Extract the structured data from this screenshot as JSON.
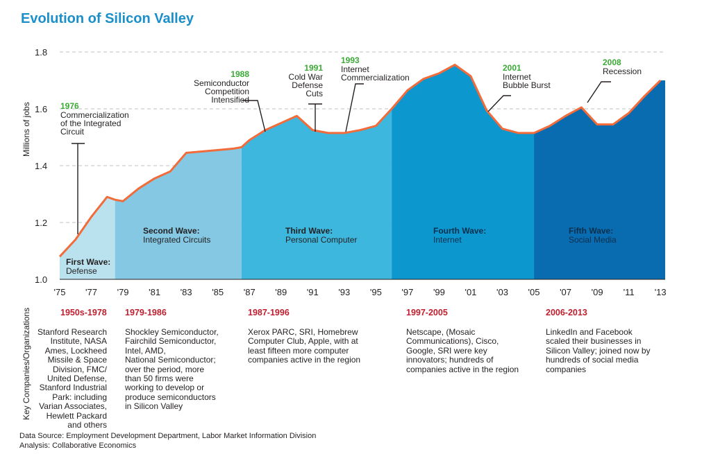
{
  "title": "Evolution of Silicon Valley",
  "chart_data": {
    "type": "area",
    "title": "Evolution of Silicon Valley",
    "ylabel": "Millions of jobs",
    "xlabel": "",
    "ylim": [
      1.0,
      1.8
    ],
    "y_ticks": [
      "1.0",
      "1.2",
      "1.4",
      "1.6",
      "1.8"
    ],
    "y_tick_values": [
      1.0,
      1.2,
      1.4,
      1.6,
      1.8
    ],
    "x_tick_labels": [
      "'75",
      "'77",
      "'79",
      "'81",
      "'83",
      "'85",
      "'87",
      "'89",
      "'91",
      "'93",
      "'95",
      "'97",
      "'99",
      "'01",
      "'03",
      "'05",
      "'07",
      "'09",
      "'11",
      "'13"
    ],
    "x_tick_years": [
      1975,
      1977,
      1979,
      1981,
      1983,
      1985,
      1987,
      1989,
      1991,
      1993,
      1995,
      1997,
      1999,
      2001,
      2003,
      2005,
      2007,
      2009,
      2011,
      2013
    ],
    "series": [
      {
        "name": "Silicon Valley jobs",
        "x": [
          1975,
          1976,
          1977,
          1978,
          1978.5,
          1979,
          1980,
          1981,
          1982,
          1983,
          1984,
          1985,
          1986,
          1986.5,
          1987,
          1988,
          1989,
          1990,
          1991,
          1992,
          1993,
          1994,
          1995,
          1996,
          1997,
          1998,
          1999,
          2000,
          2001,
          2002,
          2003,
          2004,
          2005,
          2006,
          2007,
          2008,
          2009,
          2010,
          2011,
          2012,
          2013
        ],
        "values": [
          1.08,
          1.14,
          1.22,
          1.29,
          1.28,
          1.275,
          1.32,
          1.355,
          1.38,
          1.445,
          1.45,
          1.455,
          1.46,
          1.465,
          1.49,
          1.525,
          1.55,
          1.575,
          1.525,
          1.515,
          1.515,
          1.525,
          1.54,
          1.6,
          1.665,
          1.705,
          1.725,
          1.755,
          1.715,
          1.595,
          1.53,
          1.515,
          1.515,
          1.54,
          1.575,
          1.605,
          1.545,
          1.545,
          1.585,
          1.645,
          1.7
        ]
      }
    ],
    "waves": [
      {
        "name": "First Wave:",
        "subtitle": "Defense",
        "start": 1975,
        "end": 1978.5,
        "color": "#b9e1ee"
      },
      {
        "name": "Second Wave:",
        "subtitle": "Integrated Circuits",
        "start": 1978.5,
        "end": 1986.5,
        "color": "#84c8e3"
      },
      {
        "name": "Third Wave:",
        "subtitle": "Personal Computer",
        "start": 1986.5,
        "end": 1996,
        "color": "#3eb7de"
      },
      {
        "name": "Fourth Wave:",
        "subtitle": "Internet",
        "start": 1996,
        "end": 2005,
        "color": "#0d97cf"
      },
      {
        "name": "Fifth Wave:",
        "subtitle": "Social Media",
        "start": 2005,
        "end": 2013.3,
        "color": "#0a6cb0"
      }
    ],
    "annotations": [
      {
        "year_label": "1976",
        "text": "Commercialization\nof the Integrated\nCircuit"
      },
      {
        "year_label": "1988",
        "text": "Semiconductor\nCompetition\nIntensified"
      },
      {
        "year_label": "1991",
        "text": "Cold War\nDefense\nCuts"
      },
      {
        "year_label": "1993",
        "text": "Internet\nCommercialization"
      },
      {
        "year_label": "2001",
        "text": "Internet\nBubble Burst"
      },
      {
        "year_label": "2008",
        "text": "Recession"
      }
    ],
    "colors": {
      "line": "#f26b3a",
      "annotation_year": "#3aaa35",
      "era": "#be1e2d",
      "title": "#1a8fc9"
    }
  },
  "companies": {
    "axis_label": "Key Companies/Organizations",
    "eras": [
      {
        "period": "1950s-1978",
        "text": "Stanford Research\nInstitute, NASA\nAmes, Lockheed\nMissile & Space\nDivision, FMC/\nUnited Defense,\nStanford Industrial\nPark: including\nVarian Associates,\nHewlett Packard\nand others"
      },
      {
        "period": "1979-1986",
        "text": "Shockley Semiconductor,\nFairchild Semiconductor,\nIntel, AMD,\nNational Semiconductor;\nover the period, more\nthan 50 firms were\nworking to develop or\nproduce semiconductors\nin Silicon Valley"
      },
      {
        "period": "1987-1996",
        "text": "Xerox PARC, SRI, Homebrew\nComputer Club, Apple, with at\nleast fifteen more computer\ncompanies active in the region"
      },
      {
        "period": "1997-2005",
        "text": "Netscape, (Mosaic\nCommunications), Cisco,\nGoogle, SRI were key\ninnovators; hundreds of\ncompanies active in the region"
      },
      {
        "period": "2006-2013",
        "text": "LinkedIn and Facebook\nscaled their businesses in\nSilicon Valley; joined now by\nhundreds of social media\ncompanies"
      }
    ]
  },
  "footer": {
    "source": "Data Source: Employment Development Department, Labor Market Information Division",
    "analysis": "Analysis: Collaborative Economics"
  }
}
